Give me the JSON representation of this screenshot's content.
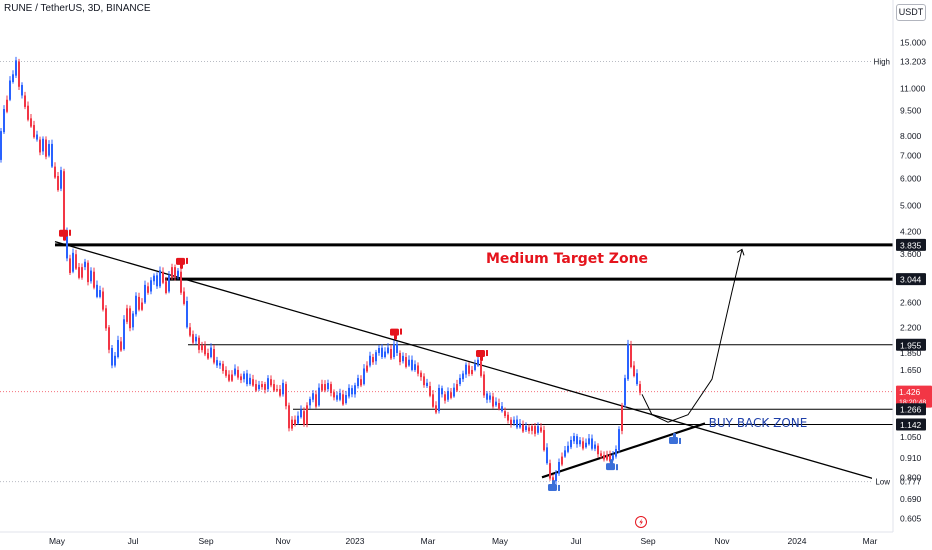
{
  "header": {
    "symbol_line": "RUNE / TetherUS, 3D, BINANCE",
    "currency_button": "USDT"
  },
  "colors": {
    "up": "#2962ff",
    "down": "#f23645",
    "background": "#e9f1fb",
    "axis_text": "#131722",
    "annotation_red": "#e5141d",
    "annotation_blue": "#1e3fa9",
    "thumb_blue": "#3b6fd8",
    "thumb_red": "#e5141d"
  },
  "chart_data": {
    "type": "candlestick",
    "title": "",
    "x_ticks": [
      "May",
      "Jul",
      "Sep",
      "Nov",
      "2023",
      "Mar",
      "May",
      "Jul",
      "Sep",
      "Nov",
      "2024",
      "Mar"
    ],
    "y_ticks": [
      15.0,
      11.0,
      9.5,
      8.0,
      7.0,
      6.0,
      5.0,
      4.2,
      3.6,
      3.0,
      2.6,
      2.2,
      1.85,
      1.65,
      1.426,
      1.266,
      1.142,
      1.05,
      0.91,
      0.8,
      0.69,
      0.605
    ],
    "y_scale": "log",
    "y_range": [
      0.58,
      16.0
    ],
    "price_labels": [
      {
        "value": 13.203,
        "text": "13.203",
        "tag": "High",
        "style": "plain"
      },
      {
        "value": 3.835,
        "text": "3.835",
        "style": "dark"
      },
      {
        "value": 3.044,
        "text": "3.044",
        "style": "dark"
      },
      {
        "value": 1.955,
        "text": "1.955",
        "style": "dark"
      },
      {
        "value": 1.426,
        "text": "1.426",
        "subtext": "18:20:48",
        "style": "red"
      },
      {
        "value": 1.266,
        "text": "1.266",
        "style": "dark"
      },
      {
        "value": 1.142,
        "text": "1.142",
        "style": "dark"
      },
      {
        "value": 0.777,
        "text": "0.777",
        "tag": "Low",
        "style": "plain"
      }
    ],
    "horizontal_levels": [
      {
        "value": 3.835,
        "weight": "heavy"
      },
      {
        "value": 3.044,
        "weight": "heavy"
      },
      {
        "value": 1.955,
        "weight": "thin"
      },
      {
        "value": 1.266,
        "weight": "thin"
      },
      {
        "value": 1.142,
        "weight": "thin"
      }
    ],
    "annotations": {
      "medium_target": "Medium Target Zone",
      "buy_back": "BUY BACK ZONE"
    },
    "price_path": [
      [
        0,
        6.8
      ],
      [
        3,
        8.2
      ],
      [
        6,
        9.5
      ],
      [
        9,
        10.2
      ],
      [
        12,
        11.5
      ],
      [
        15,
        12.0
      ],
      [
        18,
        13.2
      ],
      [
        21,
        11.2
      ],
      [
        24,
        10.5
      ],
      [
        27,
        9.8
      ],
      [
        30,
        9.0
      ],
      [
        33,
        8.6
      ],
      [
        36,
        8.0
      ],
      [
        39,
        7.8
      ],
      [
        42,
        7.2
      ],
      [
        45,
        7.8
      ],
      [
        48,
        7.0
      ],
      [
        51,
        7.5
      ],
      [
        54,
        6.5
      ],
      [
        57,
        6.1
      ],
      [
        60,
        5.6
      ],
      [
        63,
        6.3
      ],
      [
        66,
        4.2
      ],
      [
        69,
        3.5
      ],
      [
        72,
        3.2
      ],
      [
        75,
        3.6
      ],
      [
        78,
        3.3
      ],
      [
        81,
        3.1
      ],
      [
        84,
        3.3
      ],
      [
        87,
        3.4
      ],
      [
        90,
        3.0
      ],
      [
        93,
        3.2
      ],
      [
        96,
        2.9
      ],
      [
        99,
        2.7
      ],
      [
        102,
        2.8
      ],
      [
        105,
        2.5
      ],
      [
        108,
        2.2
      ],
      [
        111,
        1.9
      ],
      [
        114,
        1.7
      ],
      [
        117,
        1.8
      ],
      [
        120,
        2.0
      ],
      [
        123,
        1.9
      ],
      [
        126,
        2.3
      ],
      [
        129,
        2.5
      ],
      [
        132,
        2.2
      ],
      [
        135,
        2.4
      ],
      [
        138,
        2.7
      ],
      [
        141,
        2.5
      ],
      [
        144,
        2.6
      ],
      [
        147,
        2.9
      ],
      [
        150,
        2.8
      ],
      [
        153,
        3.0
      ],
      [
        156,
        3.1
      ],
      [
        159,
        2.9
      ],
      [
        162,
        3.2
      ],
      [
        165,
        3.0
      ],
      [
        168,
        2.8
      ],
      [
        171,
        3.1
      ],
      [
        174,
        3.3
      ],
      [
        177,
        3.1
      ],
      [
        180,
        3.2
      ],
      [
        183,
        2.8
      ],
      [
        186,
        2.6
      ],
      [
        189,
        2.2
      ],
      [
        192,
        2.1
      ],
      [
        195,
        2.0
      ],
      [
        198,
        2.05
      ],
      [
        201,
        1.9
      ],
      [
        204,
        1.95
      ],
      [
        207,
        1.85
      ],
      [
        210,
        1.8
      ],
      [
        213,
        1.9
      ],
      [
        216,
        1.75
      ],
      [
        219,
        1.7
      ],
      [
        222,
        1.72
      ],
      [
        225,
        1.65
      ],
      [
        228,
        1.6
      ],
      [
        231,
        1.55
      ],
      [
        234,
        1.6
      ],
      [
        237,
        1.65
      ],
      [
        240,
        1.58
      ],
      [
        243,
        1.55
      ],
      [
        246,
        1.6
      ],
      [
        249,
        1.5
      ],
      [
        252,
        1.55
      ],
      [
        255,
        1.5
      ],
      [
        258,
        1.45
      ],
      [
        261,
        1.48
      ],
      [
        264,
        1.5
      ],
      [
        267,
        1.45
      ],
      [
        270,
        1.55
      ],
      [
        273,
        1.5
      ],
      [
        276,
        1.45
      ],
      [
        279,
        1.45
      ],
      [
        282,
        1.4
      ],
      [
        285,
        1.5
      ],
      [
        288,
        1.3
      ],
      [
        291,
        1.12
      ],
      [
        294,
        1.18
      ],
      [
        297,
        1.15
      ],
      [
        300,
        1.2
      ],
      [
        303,
        1.25
      ],
      [
        306,
        1.15
      ],
      [
        309,
        1.3
      ],
      [
        312,
        1.35
      ],
      [
        315,
        1.4
      ],
      [
        318,
        1.3
      ],
      [
        321,
        1.45
      ],
      [
        324,
        1.5
      ],
      [
        327,
        1.45
      ],
      [
        330,
        1.5
      ],
      [
        333,
        1.42
      ],
      [
        336,
        1.38
      ],
      [
        339,
        1.35
      ],
      [
        342,
        1.4
      ],
      [
        345,
        1.32
      ],
      [
        348,
        1.38
      ],
      [
        351,
        1.45
      ],
      [
        354,
        1.4
      ],
      [
        357,
        1.48
      ],
      [
        360,
        1.55
      ],
      [
        363,
        1.5
      ],
      [
        366,
        1.65
      ],
      [
        369,
        1.7
      ],
      [
        372,
        1.8
      ],
      [
        375,
        1.75
      ],
      [
        378,
        1.85
      ],
      [
        381,
        1.9
      ],
      [
        384,
        1.8
      ],
      [
        387,
        1.85
      ],
      [
        390,
        1.9
      ],
      [
        393,
        1.8
      ],
      [
        396,
        1.95
      ],
      [
        399,
        1.85
      ],
      [
        402,
        1.75
      ],
      [
        405,
        1.8
      ],
      [
        408,
        1.7
      ],
      [
        411,
        1.75
      ],
      [
        414,
        1.65
      ],
      [
        417,
        1.7
      ],
      [
        420,
        1.62
      ],
      [
        423,
        1.58
      ],
      [
        426,
        1.5
      ],
      [
        429,
        1.48
      ],
      [
        432,
        1.4
      ],
      [
        435,
        1.3
      ],
      [
        438,
        1.25
      ],
      [
        441,
        1.45
      ],
      [
        444,
        1.4
      ],
      [
        447,
        1.35
      ],
      [
        450,
        1.42
      ],
      [
        453,
        1.38
      ],
      [
        456,
        1.45
      ],
      [
        459,
        1.5
      ],
      [
        462,
        1.55
      ],
      [
        465,
        1.6
      ],
      [
        468,
        1.7
      ],
      [
        471,
        1.62
      ],
      [
        474,
        1.65
      ],
      [
        477,
        1.7
      ],
      [
        480,
        1.75
      ],
      [
        483,
        1.6
      ],
      [
        486,
        1.4
      ],
      [
        489,
        1.35
      ],
      [
        492,
        1.38
      ],
      [
        495,
        1.3
      ],
      [
        498,
        1.32
      ],
      [
        501,
        1.28
      ],
      [
        504,
        1.25
      ],
      [
        507,
        1.22
      ],
      [
        510,
        1.18
      ],
      [
        513,
        1.15
      ],
      [
        516,
        1.17
      ],
      [
        519,
        1.12
      ],
      [
        522,
        1.14
      ],
      [
        525,
        1.1
      ],
      [
        528,
        1.12
      ],
      [
        531,
        1.1
      ],
      [
        534,
        1.13
      ],
      [
        537,
        1.08
      ],
      [
        540,
        1.12
      ],
      [
        543,
        1.1
      ],
      [
        546,
        0.97
      ],
      [
        549,
        0.88
      ],
      [
        552,
        0.8
      ],
      [
        555,
        0.78
      ],
      [
        558,
        0.82
      ],
      [
        561,
        0.88
      ],
      [
        564,
        0.92
      ],
      [
        567,
        0.95
      ],
      [
        570,
        0.98
      ],
      [
        573,
        1.02
      ],
      [
        576,
        1.05
      ],
      [
        579,
        1.0
      ],
      [
        582,
        1.02
      ],
      [
        585,
        0.98
      ],
      [
        588,
        1.0
      ],
      [
        591,
        1.03
      ],
      [
        594,
        0.97
      ],
      [
        597,
        0.99
      ],
      [
        600,
        0.94
      ],
      [
        603,
        0.93
      ],
      [
        606,
        0.91
      ],
      [
        609,
        0.93
      ],
      [
        612,
        0.9
      ],
      [
        615,
        0.92
      ],
      [
        618,
        0.96
      ],
      [
        621,
        1.1
      ],
      [
        624,
        1.3
      ],
      [
        627,
        1.55
      ],
      [
        630,
        1.95
      ],
      [
        633,
        1.7
      ],
      [
        636,
        1.6
      ],
      [
        639,
        1.5
      ],
      [
        642,
        1.426
      ]
    ],
    "trendlines": [
      {
        "name": "descending-trendline",
        "points": [
          [
            55,
            3.92
          ],
          [
            875,
            0.79
          ]
        ]
      },
      {
        "name": "rising-support-line",
        "points": [
          [
            542,
            0.8
          ],
          [
            705,
            1.15
          ]
        ]
      }
    ],
    "projection_path": [
      [
        642,
        1.4
      ],
      [
        652,
        1.22
      ],
      [
        668,
        1.16
      ],
      [
        688,
        1.22
      ],
      [
        712,
        1.55
      ],
      [
        732,
        2.8
      ],
      [
        742,
        3.72
      ]
    ],
    "thumbs_down": [
      [
        64,
        4.05
      ],
      [
        181,
        3.35
      ],
      [
        395,
        2.08
      ],
      [
        481,
        1.8
      ]
    ],
    "thumbs_up": [
      [
        553,
        0.765
      ],
      [
        611,
        0.88
      ],
      [
        674,
        1.05
      ]
    ]
  }
}
